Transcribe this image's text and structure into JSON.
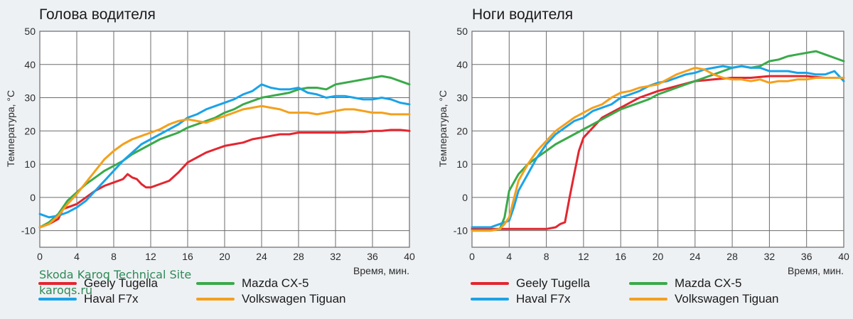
{
  "colors": {
    "geely": "#e3262f",
    "haval": "#1aa3e8",
    "mazda": "#3aaa4a",
    "vw": "#f4a01c",
    "grid": "#6b6b6b",
    "text": "#2b2b2b"
  },
  "watermark": {
    "line1": "Skoda Karoq Technical Site",
    "line2": "karoqs.ru"
  },
  "chart_data": [
    {
      "type": "line",
      "title": "Голова водителя",
      "xlabel": "Время, мин.",
      "ylabel": "Температура, °С",
      "xlim": [
        0,
        40
      ],
      "ylim": [
        -15,
        50
      ],
      "xticks": [
        0,
        4,
        8,
        12,
        16,
        20,
        24,
        28,
        32,
        36,
        40
      ],
      "yticks": [
        -10,
        0,
        10,
        20,
        30,
        40,
        50
      ],
      "grid": true,
      "legend": "bottom",
      "series": [
        {
          "name": "Geely Tugella",
          "color_key": "geely",
          "x": [
            0,
            1,
            2,
            2.5,
            3,
            4,
            5,
            6,
            7,
            8,
            9,
            9.5,
            10,
            10.5,
            11,
            11.5,
            12,
            13,
            14,
            15,
            16,
            17,
            18,
            19,
            20,
            21,
            22,
            23,
            24,
            25,
            26,
            27,
            28,
            29,
            30,
            31,
            32,
            33,
            34,
            35,
            36,
            37,
            38,
            39,
            40
          ],
          "y": [
            -9,
            -8,
            -6.5,
            -3.5,
            -3,
            -2,
            0,
            2,
            3.5,
            4.5,
            5.5,
            7,
            6,
            5.5,
            4,
            3,
            3,
            4,
            5,
            7.5,
            10.5,
            12,
            13.5,
            14.5,
            15.5,
            16,
            16.5,
            17.5,
            18,
            18.5,
            19,
            19,
            19.5,
            19.5,
            19.5,
            19.5,
            19.5,
            19.5,
            19.7,
            19.7,
            20,
            20,
            20.3,
            20.3,
            20
          ]
        },
        {
          "name": "Mazda CX-5",
          "color_key": "mazda",
          "x": [
            0,
            1,
            2,
            3,
            4,
            5,
            6,
            7,
            8,
            9,
            10,
            11,
            12,
            13,
            14,
            15,
            16,
            17,
            18,
            19,
            20,
            21,
            22,
            23,
            24,
            25,
            26,
            27,
            28,
            29,
            30,
            31,
            32,
            33,
            34,
            35,
            36,
            37,
            38,
            39,
            40
          ],
          "y": [
            -9,
            -7.5,
            -5,
            -1,
            1.5,
            4,
            6,
            8,
            9.5,
            11,
            13,
            14.5,
            16,
            17.5,
            18.5,
            19.5,
            21,
            22,
            23,
            24,
            25.5,
            26.5,
            28,
            29,
            30,
            30.5,
            31,
            31.5,
            32.5,
            33,
            33,
            32.5,
            34,
            34.5,
            35,
            35.5,
            36,
            36.5,
            36,
            35,
            34
          ]
        },
        {
          "name": "Haval F7x",
          "color_key": "haval",
          "x": [
            0,
            1,
            2,
            3,
            4,
            5,
            6,
            7,
            8,
            9,
            10,
            11,
            12,
            13,
            14,
            15,
            16,
            17,
            18,
            19,
            20,
            21,
            22,
            23,
            24,
            25,
            26,
            27,
            28,
            29,
            30,
            31,
            32,
            33,
            34,
            35,
            36,
            37,
            38,
            39,
            40
          ],
          "y": [
            -5,
            -6,
            -5.5,
            -4.5,
            -3,
            -1,
            2,
            5,
            8,
            11,
            13.5,
            16,
            17.5,
            19,
            20.5,
            22,
            24,
            25,
            26.5,
            27.5,
            28.5,
            29.5,
            31,
            32,
            34,
            33,
            32.5,
            32.5,
            33,
            31.5,
            31,
            30,
            30.5,
            30.5,
            30,
            29.5,
            29.5,
            30,
            29.5,
            28.5,
            28
          ]
        },
        {
          "name": "Volkswagen Tiguan",
          "color_key": "vw",
          "x": [
            0,
            1,
            2,
            3,
            4,
            5,
            6,
            7,
            8,
            9,
            10,
            11,
            12,
            13,
            14,
            15,
            16,
            17,
            18,
            19,
            20,
            21,
            22,
            23,
            24,
            25,
            26,
            27,
            28,
            29,
            30,
            31,
            32,
            33,
            34,
            35,
            36,
            37,
            38,
            39,
            40
          ],
          "y": [
            -9,
            -8,
            -5.5,
            -2,
            1,
            4.5,
            8,
            11.5,
            14,
            16,
            17.5,
            18.5,
            19.5,
            20.5,
            22,
            23,
            23.5,
            23,
            22.5,
            23.5,
            24.5,
            25.5,
            26.5,
            27,
            27.5,
            27,
            26.5,
            25.5,
            25.5,
            25.5,
            25,
            25.5,
            26,
            26.5,
            26.5,
            26,
            25.5,
            25.5,
            25,
            25,
            25
          ]
        }
      ]
    },
    {
      "type": "line",
      "title": "Ноги водителя",
      "xlabel": "Время, мин.",
      "ylabel": "Температура, °С",
      "xlim": [
        0,
        40
      ],
      "ylim": [
        -15,
        50
      ],
      "xticks": [
        0,
        4,
        8,
        12,
        16,
        20,
        24,
        28,
        32,
        36,
        40
      ],
      "yticks": [
        -10,
        0,
        10,
        20,
        30,
        40,
        50
      ],
      "grid": true,
      "legend": "bottom",
      "series": [
        {
          "name": "Geely Tugella",
          "color_key": "geely",
          "x": [
            0,
            2,
            4,
            6,
            8,
            9,
            9.5,
            10,
            10.5,
            11,
            11.5,
            12,
            13,
            14,
            16,
            18,
            20,
            22,
            24,
            26,
            28,
            30,
            32,
            34,
            36,
            38,
            40
          ],
          "y": [
            -9.5,
            -9.5,
            -9.5,
            -9.5,
            -9.5,
            -9,
            -8,
            -7.5,
            0,
            7,
            14,
            18,
            21,
            24,
            27,
            30,
            32,
            33.5,
            35,
            35.5,
            36,
            36,
            36.5,
            36.5,
            36.5,
            36,
            36
          ]
        },
        {
          "name": "Mazda CX-5",
          "color_key": "mazda",
          "x": [
            0,
            1,
            2,
            3,
            3.5,
            4,
            5,
            6,
            7,
            8,
            9,
            10,
            11,
            12,
            13,
            14,
            15,
            16,
            17,
            18,
            19,
            20,
            21,
            22,
            23,
            24,
            25,
            26,
            27,
            28,
            29,
            30,
            31,
            32,
            33,
            34,
            35,
            36,
            37,
            38,
            39,
            40
          ],
          "y": [
            -10,
            -10,
            -10,
            -9.5,
            -6,
            2,
            7,
            10,
            12,
            14,
            16,
            17.5,
            19,
            20.5,
            22,
            23.5,
            25,
            26.5,
            27.5,
            28.5,
            29.5,
            31,
            32,
            33,
            34,
            35,
            36,
            37,
            38,
            39,
            39.5,
            39,
            39.5,
            41,
            41.5,
            42.5,
            43,
            43.5,
            44,
            43,
            42,
            41
          ]
        },
        {
          "name": "Haval F7x",
          "color_key": "haval",
          "x": [
            0,
            1,
            2,
            3,
            4,
            4.5,
            5,
            6,
            7,
            8,
            9,
            10,
            11,
            12,
            13,
            14,
            15,
            16,
            17,
            18,
            19,
            20,
            21,
            22,
            23,
            24,
            25,
            26,
            27,
            28,
            29,
            30,
            31,
            32,
            33,
            34,
            35,
            36,
            37,
            38,
            39,
            40
          ],
          "y": [
            -9,
            -9,
            -9,
            -8,
            -7,
            -3,
            2,
            7,
            12,
            16,
            19,
            21,
            23,
            24,
            26,
            27,
            28,
            30,
            31,
            32,
            33.5,
            34.5,
            35,
            36,
            37,
            37.5,
            38.5,
            39,
            39.5,
            39,
            39.5,
            39,
            39,
            38,
            38,
            38,
            37.5,
            37.5,
            37,
            37,
            38,
            35
          ]
        },
        {
          "name": "Volkswagen Tiguan",
          "color_key": "vw",
          "x": [
            0,
            1,
            2,
            3,
            3.5,
            4,
            5,
            6,
            7,
            8,
            9,
            10,
            11,
            12,
            13,
            14,
            15,
            16,
            17,
            18,
            19,
            20,
            21,
            22,
            23,
            24,
            25,
            26,
            27,
            28,
            29,
            30,
            31,
            32,
            33,
            34,
            35,
            36,
            37,
            38,
            39,
            40
          ],
          "y": [
            -10,
            -10,
            -10,
            -9.5,
            -8,
            -6,
            5,
            10,
            14,
            17,
            20,
            22,
            24,
            25.5,
            27,
            28,
            30,
            31.5,
            32,
            33,
            33.5,
            34,
            35.5,
            37,
            38,
            39,
            38.5,
            37,
            36,
            35.5,
            35.5,
            35,
            35.5,
            34.5,
            35,
            35,
            35.5,
            35.5,
            36,
            36,
            36,
            36
          ]
        }
      ]
    }
  ]
}
